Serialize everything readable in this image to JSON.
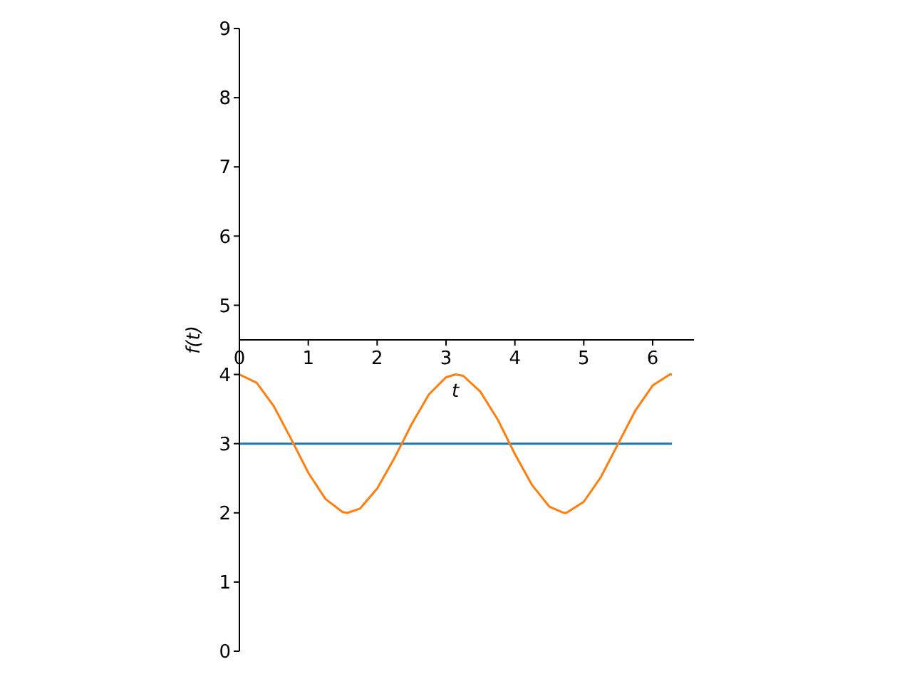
{
  "chart_data": {
    "type": "line",
    "xlabel": "t",
    "ylabel": "f(t)",
    "xlim": [
      0,
      6.6
    ],
    "ylim": [
      0,
      9
    ],
    "xticks": [
      0,
      1,
      2,
      3,
      4,
      5,
      6
    ],
    "yticks": [
      0,
      1,
      2,
      3,
      4,
      5,
      6,
      7,
      8,
      9
    ],
    "grid": false,
    "legend": false,
    "marker": "none",
    "line_style": "solid",
    "series": [
      {
        "color": "#1f77b4",
        "x": [
          0,
          6.28
        ],
        "values": [
          3,
          3
        ]
      },
      {
        "color": "#ff7f0e",
        "x": [
          0,
          0.25,
          0.5,
          0.75,
          1,
          1.25,
          1.5,
          1.57,
          1.75,
          2,
          2.25,
          2.5,
          2.75,
          3,
          3.14,
          3.25,
          3.5,
          3.75,
          4,
          4.25,
          4.5,
          4.71,
          4.75,
          5,
          5.25,
          5.5,
          5.75,
          6,
          6.25,
          6.28
        ],
        "values": [
          4,
          3.88,
          3.54,
          3.07,
          2.58,
          2.2,
          2.01,
          2,
          2.06,
          2.35,
          2.79,
          3.28,
          3.71,
          3.96,
          4,
          3.98,
          3.75,
          3.35,
          2.85,
          2.4,
          2.09,
          2,
          2,
          2.16,
          2.52,
          3,
          3.48,
          3.84,
          4,
          4
        ]
      }
    ]
  }
}
